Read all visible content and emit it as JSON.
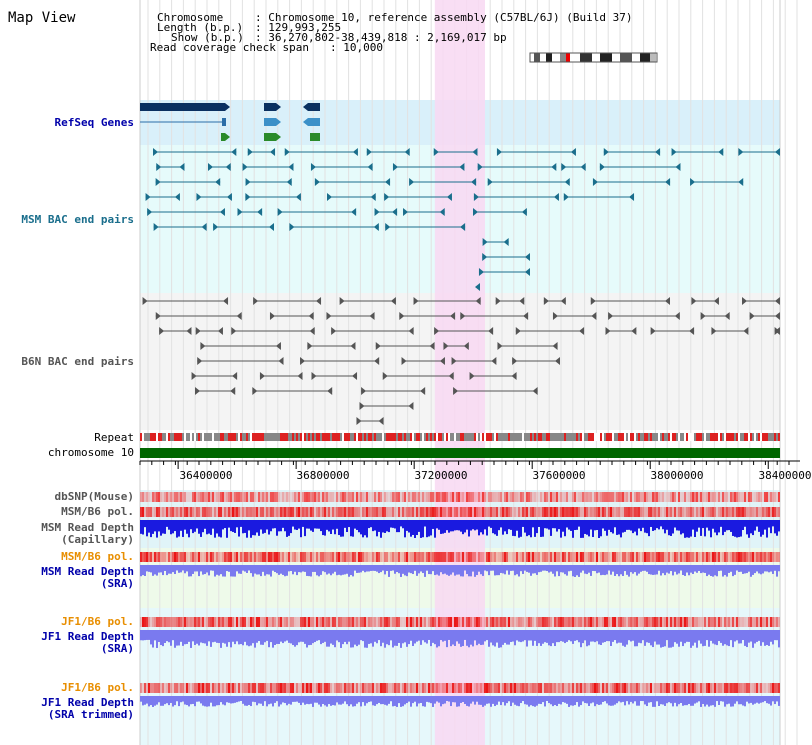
{
  "title": "Map View",
  "info": {
    "chromosome_label": "Chromosome",
    "chromosome_value": ": Chromosome 10, reference assembly (C57BL/6J) (Build 37)",
    "length_label": "Length (b.p.)",
    "length_value": ": 129,993,255",
    "show_label": "Show (b.p.)",
    "show_value": ": 36,270,802-38,439,818 : 2,169,017 bp",
    "span_label": "Read coverage check span",
    "span_value": ": 10,000"
  },
  "tracks": {
    "refseq": "RefSeq Genes",
    "msm_bac": "MSM BAC end pairs",
    "b6n_bac": "B6N BAC end pairs",
    "repeat": "Repeat",
    "chromosome": "chromosome 10",
    "dbsnp": "dbSNP(Mouse)",
    "msm_b6_pol_1": "MSM/B6 pol.",
    "msm_depth_cap_1": "MSM Read Depth",
    "msm_depth_cap_2": "(Capillary)",
    "msm_b6_pol_2": "MSM/B6 pol.",
    "msm_depth_sra_1": "MSM Read Depth",
    "msm_depth_sra_2": "(SRA)",
    "jf1_b6_pol_1": "JF1/B6 pol.",
    "jf1_depth_sra_1": "JF1 Read Depth",
    "jf1_depth_sra_2": "(SRA)",
    "jf1_b6_pol_2": "JF1/B6 pol.",
    "jf1_depth_trim_1": "JF1 Read Depth",
    "jf1_depth_trim_2": "(SRA trimmed)"
  },
  "axis": {
    "ticks": [
      "36400000",
      "36800000",
      "37200000",
      "37600000",
      "38000000",
      "38400000"
    ],
    "tick_values": [
      36400000,
      36800000,
      37200000,
      37600000,
      38000000,
      38400000
    ],
    "range": [
      36270802,
      38439818
    ]
  },
  "highlight_range": [
    37270000,
    37440000
  ],
  "colors": {
    "refseq_bg": "#d9f0fa",
    "msm_bg": "#e6fbfb",
    "b6n_bg": "#f4f4f4",
    "highlight": "#f8d8f2",
    "chromosome_bar": "#006600",
    "msm_color": "#1a6e8c",
    "b6n_color": "#555555",
    "depth_blue": "#1a1ae0",
    "depth_light": "#7a7aef",
    "pol_red": "#ee3333",
    "label_blue": "#0000aa",
    "label_teal": "#1a6e8c",
    "label_orange": "#e88e00"
  }
}
